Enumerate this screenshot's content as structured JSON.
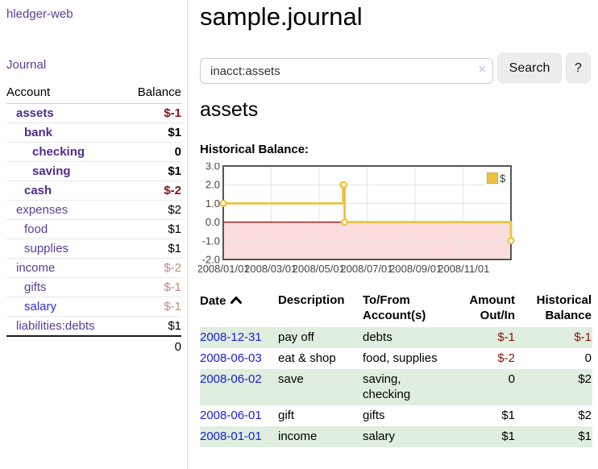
{
  "sidebar": {
    "app_title": "hledger-web",
    "journal_link": "Journal",
    "accounts_table": {
      "account_header": "Account",
      "balance_header": "Balance",
      "rows": [
        {
          "name": "assets",
          "depth": 1,
          "inacct": true,
          "balance": "$-1",
          "balance_class": "neg"
        },
        {
          "name": "bank",
          "depth": 2,
          "inacct": true,
          "balance": "$1",
          "balance_class": ""
        },
        {
          "name": "checking",
          "depth": 3,
          "inacct": true,
          "balance": "0",
          "balance_class": ""
        },
        {
          "name": "saving",
          "depth": 3,
          "inacct": true,
          "balance": "$1",
          "balance_class": ""
        },
        {
          "name": "cash",
          "depth": 2,
          "inacct": true,
          "balance": "$-2",
          "balance_class": "neg"
        },
        {
          "name": "expenses",
          "depth": 1,
          "inacct": false,
          "balance": "$2",
          "balance_class": ""
        },
        {
          "name": "food",
          "depth": 2,
          "inacct": false,
          "balance": "$1",
          "balance_class": ""
        },
        {
          "name": "supplies",
          "depth": 2,
          "inacct": false,
          "balance": "$1",
          "balance_class": ""
        },
        {
          "name": "income",
          "depth": 1,
          "inacct": false,
          "balance": "$-2",
          "balance_class": "negfade"
        },
        {
          "name": "gifts",
          "depth": 2,
          "inacct": false,
          "balance": "$-1",
          "balance_class": "negfade"
        },
        {
          "name": "salary",
          "depth": 2,
          "inacct": false,
          "link_blue": true,
          "balance": "$-1",
          "balance_class": "negfade"
        },
        {
          "name": "liabilities:debts",
          "depth": 1,
          "inacct": false,
          "balance": "$1",
          "balance_class": ""
        }
      ],
      "total": "0"
    }
  },
  "main": {
    "title": "sample.journal",
    "search": {
      "value": "inacct:assets",
      "clear_icon": "×",
      "search_button": "Search",
      "help_button": "?"
    },
    "account_heading": "assets",
    "chart_label": "Historical Balance:"
  },
  "chart_data": {
    "type": "line",
    "title": "Historical Balance",
    "step": true,
    "x_range": [
      "2008-01-01",
      "2008-12-31"
    ],
    "ylim": [
      -2,
      3
    ],
    "y_ticks": [
      "3.0",
      "2.0",
      "1.0",
      "0.0",
      "-1.0",
      "-2.0"
    ],
    "x_ticks": [
      "2008/01/01",
      "2008/03/01",
      "2008/05/01",
      "2008/07/01",
      "2008/09/01",
      "2008/11/01"
    ],
    "series": [
      {
        "name": "$",
        "color": "#edc240",
        "points": [
          {
            "date": "2008-01-01",
            "value": 1
          },
          {
            "date": "2008-06-01",
            "value": 2
          },
          {
            "date": "2008-06-02",
            "value": 2
          },
          {
            "date": "2008-06-03",
            "value": 0
          },
          {
            "date": "2008-12-31",
            "value": -1
          }
        ]
      }
    ],
    "legend": {
      "label": "$",
      "position": "top-right"
    },
    "grid": true
  },
  "register": {
    "headers": [
      "Date",
      "Description",
      "To/From Account(s)",
      "Amount Out/In",
      "Historical Balance"
    ],
    "rows": [
      {
        "date": "2008-12-31",
        "description": "pay off",
        "accounts": "debts",
        "amount": "$-1",
        "amount_class": "neg",
        "balance": "$-1",
        "balance_class": "neg"
      },
      {
        "date": "2008-06-03",
        "description": "eat & shop",
        "accounts": "food, supplies",
        "amount": "$-2",
        "amount_class": "neg",
        "balance": "0",
        "balance_class": ""
      },
      {
        "date": "2008-06-02",
        "description": "save",
        "accounts": "saving, checking",
        "amount": "0",
        "amount_class": "",
        "balance": "$2",
        "balance_class": ""
      },
      {
        "date": "2008-06-01",
        "description": "gift",
        "accounts": "gifts",
        "amount": "$1",
        "amount_class": "",
        "balance": "$2",
        "balance_class": ""
      },
      {
        "date": "2008-01-01",
        "description": "income",
        "accounts": "salary",
        "amount": "$1",
        "amount_class": "",
        "balance": "$1",
        "balance_class": ""
      }
    ]
  },
  "colors": {
    "accent_purple": "#5a3d99",
    "bold_purple": "#4d2d8c",
    "link_blue": "#1a1ae6",
    "negative_strong": "#8f1010",
    "negative_faded": "#c28686",
    "row_green": "#dfeede",
    "series_gold": "#edc240",
    "negative_region_pink": "#fbdddd",
    "zero_line_red": "#a40000",
    "plot_border": "#555555",
    "gridline": "#e4e4e4"
  }
}
